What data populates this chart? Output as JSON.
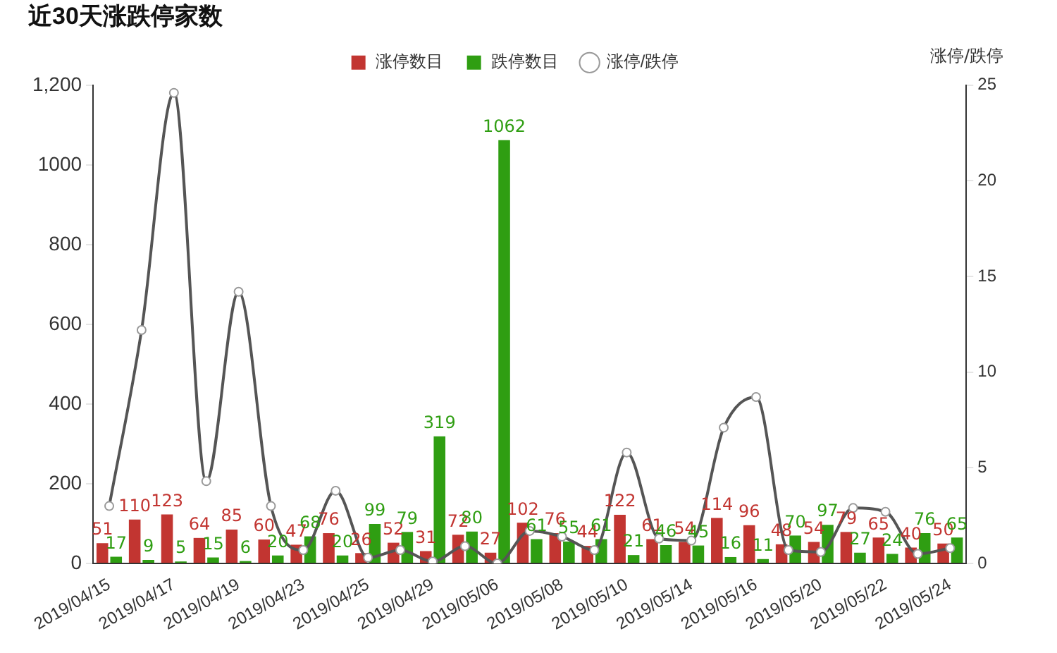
{
  "chart_data": {
    "type": "bar",
    "title": "近30天涨跌停家数",
    "y2label": "涨停/跌停",
    "categories": [
      "2019/04/15",
      null,
      "2019/04/17",
      null,
      "2019/04/19",
      null,
      "2019/04/23",
      null,
      "2019/04/25",
      null,
      "2019/04/29",
      null,
      "2019/05/06",
      null,
      "2019/05/08",
      null,
      "2019/05/10",
      null,
      "2019/05/14",
      null,
      "2019/05/16",
      null,
      "2019/05/20",
      null,
      "2019/05/22",
      null,
      "2019/05/24"
    ],
    "series": [
      {
        "name": "涨停数目",
        "color": "#c23531",
        "data_labels": true,
        "values": [
          51,
          110,
          123,
          64,
          85,
          60,
          47,
          76,
          26,
          52,
          31,
          72,
          27,
          102,
          76,
          44,
          122,
          61,
          54,
          114,
          96,
          48,
          54,
          79,
          65,
          40,
          50
        ]
      },
      {
        "name": "跌停数目",
        "color": "#2f9e12",
        "data_labels": true,
        "values": [
          17,
          9,
          5,
          15,
          6,
          20,
          68,
          20,
          99,
          79,
          319,
          80,
          1062,
          61,
          55,
          61,
          21,
          46,
          45,
          16,
          11,
          70,
          97,
          27,
          24,
          76,
          65
        ]
      },
      {
        "name": "涨停/跌停",
        "type": "line",
        "axis": "y2",
        "color": "#555555",
        "values": [
          3.0,
          12.2,
          24.6,
          4.3,
          14.2,
          3.0,
          0.7,
          3.8,
          0.3,
          0.7,
          0.1,
          0.9,
          0.0,
          1.7,
          1.4,
          0.7,
          5.8,
          1.3,
          1.2,
          7.1,
          8.7,
          0.7,
          0.6,
          2.9,
          2.7,
          0.5,
          0.8
        ]
      }
    ],
    "ylim": [
      0,
      1200
    ],
    "yticks": [
      0,
      200,
      400,
      600,
      800,
      1000,
      {
        "value": 1200,
        "label": "1,200"
      }
    ],
    "y2lim": [
      0,
      25
    ],
    "y2ticks": [
      0,
      5,
      10,
      15,
      20,
      25
    ],
    "grid": false,
    "legend": "top",
    "marker": "circle",
    "line_style": "solid"
  }
}
